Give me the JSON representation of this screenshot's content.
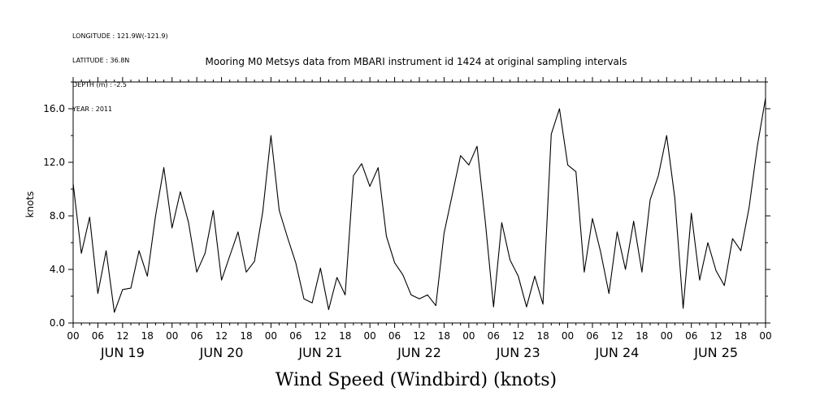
{
  "header": {
    "meta_lines": [
      "LONGITUDE : 121.9W(-121.9)",
      "LATITUDE : 36.8N",
      "DEPTH (m) : -2.5",
      "YEAR : 2011"
    ]
  },
  "chart_data": {
    "type": "line",
    "title": "Mooring M0 Metsys data from MBARI instrument id 1424 at original sampling intervals",
    "caption": "Wind Speed (Windbird) (knots)",
    "ylabel": "knots",
    "ylim": [
      0,
      18
    ],
    "yticks": [
      0,
      4,
      8,
      12,
      16
    ],
    "ytick_labels": [
      "0.0",
      "4.0",
      "8.0",
      "12.0",
      "16.0"
    ],
    "x_hour_labels": [
      "00",
      "06",
      "12",
      "18"
    ],
    "x_day_labels": [
      "JUN 19",
      "JUN 20",
      "JUN 21",
      "JUN 22",
      "JUN 23",
      "JUN 24",
      "JUN 25"
    ],
    "x_final_label": "00",
    "grid": false,
    "series": [
      {
        "x": [
          "2011-06-19T00:00",
          "2011-06-19T02:00",
          "2011-06-19T04:00",
          "2011-06-19T06:00",
          "2011-06-19T08:00",
          "2011-06-19T10:00",
          "2011-06-19T12:00",
          "2011-06-19T14:00",
          "2011-06-19T16:00",
          "2011-06-19T18:00",
          "2011-06-19T20:00",
          "2011-06-19T22:00",
          "2011-06-20T00:00",
          "2011-06-20T02:00",
          "2011-06-20T04:00",
          "2011-06-20T06:00",
          "2011-06-20T08:00",
          "2011-06-20T10:00",
          "2011-06-20T12:00",
          "2011-06-20T14:00",
          "2011-06-20T16:00",
          "2011-06-20T18:00",
          "2011-06-20T20:00",
          "2011-06-20T22:00",
          "2011-06-21T00:00",
          "2011-06-21T02:00",
          "2011-06-21T04:00",
          "2011-06-21T06:00",
          "2011-06-21T08:00",
          "2011-06-21T10:00",
          "2011-06-21T12:00",
          "2011-06-21T14:00",
          "2011-06-21T16:00",
          "2011-06-21T18:00",
          "2011-06-21T20:00",
          "2011-06-21T22:00",
          "2011-06-22T00:00",
          "2011-06-22T02:00",
          "2011-06-22T04:00",
          "2011-06-22T06:00",
          "2011-06-22T08:00",
          "2011-06-22T10:00",
          "2011-06-22T12:00",
          "2011-06-22T14:00",
          "2011-06-22T16:00",
          "2011-06-22T18:00",
          "2011-06-22T20:00",
          "2011-06-22T22:00",
          "2011-06-23T00:00",
          "2011-06-23T02:00",
          "2011-06-23T04:00",
          "2011-06-23T06:00",
          "2011-06-23T08:00",
          "2011-06-23T10:00",
          "2011-06-23T12:00",
          "2011-06-23T14:00",
          "2011-06-23T16:00",
          "2011-06-23T18:00",
          "2011-06-23T20:00",
          "2011-06-23T22:00",
          "2011-06-24T00:00",
          "2011-06-24T02:00",
          "2011-06-24T04:00",
          "2011-06-24T06:00",
          "2011-06-24T08:00",
          "2011-06-24T10:00",
          "2011-06-24T12:00",
          "2011-06-24T14:00",
          "2011-06-24T16:00",
          "2011-06-24T18:00",
          "2011-06-24T20:00",
          "2011-06-24T22:00",
          "2011-06-25T00:00",
          "2011-06-25T02:00",
          "2011-06-25T04:00",
          "2011-06-25T06:00",
          "2011-06-25T08:00",
          "2011-06-25T10:00",
          "2011-06-25T12:00",
          "2011-06-25T14:00",
          "2011-06-25T16:00",
          "2011-06-25T18:00",
          "2011-06-25T20:00",
          "2011-06-25T22:00",
          "2011-06-26T00:00"
        ],
        "values": [
          10.4,
          5.2,
          7.9,
          2.2,
          5.4,
          0.8,
          2.5,
          2.6,
          5.4,
          3.5,
          8.0,
          11.6,
          7.1,
          9.8,
          7.5,
          3.8,
          5.2,
          8.4,
          3.2,
          5.0,
          6.8,
          3.8,
          4.6,
          8.3,
          14.0,
          8.4,
          6.4,
          4.5,
          1.8,
          1.5,
          4.1,
          1.0,
          3.4,
          2.1,
          11.0,
          11.9,
          10.2,
          11.6,
          6.5,
          4.5,
          3.6,
          2.1,
          1.8,
          2.1,
          1.3,
          6.7,
          9.6,
          12.5,
          11.8,
          13.2,
          7.6,
          1.2,
          7.5,
          4.7,
          3.5,
          1.2,
          3.5,
          1.4,
          14.1,
          16.0,
          11.8,
          11.3,
          3.8,
          7.8,
          5.3,
          2.2,
          6.8,
          4.0,
          7.6,
          3.8,
          9.2,
          11.0,
          14.0,
          9.3,
          1.1,
          8.2,
          3.2,
          6.0,
          3.9,
          2.8,
          6.3,
          5.4,
          8.6,
          13.2,
          16.8
        ]
      }
    ]
  }
}
